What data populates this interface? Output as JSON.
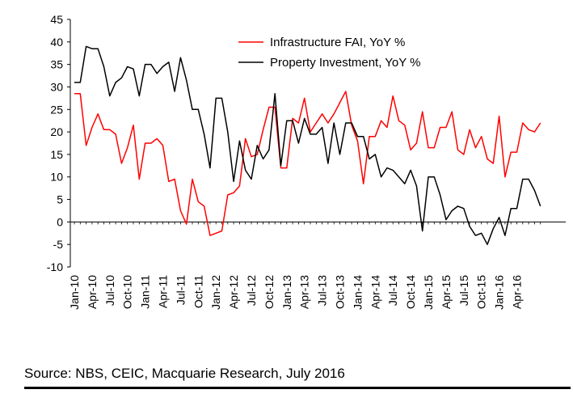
{
  "chart_data": {
    "type": "line",
    "title": "",
    "xlabel": "",
    "ylabel": "",
    "ylim": [
      -10,
      45
    ],
    "y_ticks": [
      45,
      40,
      35,
      30,
      25,
      20,
      15,
      10,
      5,
      0,
      -5,
      -10
    ],
    "x_tick_labels": [
      "Jan-10",
      "Apr-10",
      "Jul-10",
      "Oct-10",
      "Jan-11",
      "Apr-11",
      "Jul-11",
      "Oct-11",
      "Jan-12",
      "Apr-12",
      "Jul-12",
      "Oct-12",
      "Jan-13",
      "Apr-13",
      "Jul-13",
      "Oct-13",
      "Jan-14",
      "Apr-14",
      "Jul-14",
      "Oct-14",
      "Jan-15",
      "Apr-15",
      "Jul-15",
      "Oct-15",
      "Jan-16",
      "Apr-16"
    ],
    "grid": false,
    "legend_position": "top-center",
    "x_start": "Jan-10",
    "x_end": "Jun-16",
    "series": [
      {
        "name": "Infrastructure FAI, YoY %",
        "color": "#ff0000",
        "values": [
          28.5,
          28.5,
          17,
          21,
          24,
          20.5,
          20.5,
          19.5,
          13,
          16.5,
          21.5,
          9.5,
          17.5,
          17.5,
          18.5,
          17,
          9,
          9.5,
          2.5,
          -0.5,
          9.5,
          4.5,
          3.5,
          -3,
          -2.5,
          -2,
          6,
          6.5,
          8,
          18.5,
          14.5,
          15,
          20.5,
          25.5,
          25.5,
          12,
          12,
          23,
          22,
          27.5,
          20,
          22,
          24,
          22,
          24,
          26.5,
          29,
          21.5,
          18,
          8.5,
          19,
          19,
          22.5,
          21,
          28,
          22.5,
          21.5,
          16,
          17.5,
          24.5,
          16.5,
          16.5,
          21,
          21,
          24.5,
          16,
          15,
          20.5,
          16.5,
          19,
          14,
          13,
          23.5,
          10,
          15.5,
          15.5,
          22,
          20.5,
          20,
          22
        ]
      },
      {
        "name": "Property Investment, YoY %",
        "color": "#000000",
        "values": [
          31,
          31,
          39,
          38.5,
          38.5,
          34.5,
          28,
          31,
          32,
          34.5,
          34,
          28,
          35,
          35,
          33,
          34.5,
          35.5,
          29,
          36.5,
          31.5,
          25,
          25,
          19.5,
          12,
          27.5,
          27.5,
          20,
          9,
          18,
          11.5,
          9.5,
          17,
          14,
          16,
          28.5,
          12.5,
          22.5,
          22.5,
          17.5,
          23,
          19.5,
          19.5,
          21,
          13,
          22,
          15,
          22,
          22,
          19,
          19,
          14,
          15,
          10,
          12,
          11.5,
          10,
          8.5,
          11.5,
          8,
          -2,
          10,
          10,
          6,
          0.5,
          2.5,
          3.5,
          3,
          -1,
          -3,
          -2.5,
          -5,
          -1.5,
          1,
          -3,
          3,
          3,
          9.5,
          9.5,
          7,
          3.5
        ]
      }
    ]
  },
  "source": "Source: NBS, CEIC, Macquarie Research, July 2016"
}
